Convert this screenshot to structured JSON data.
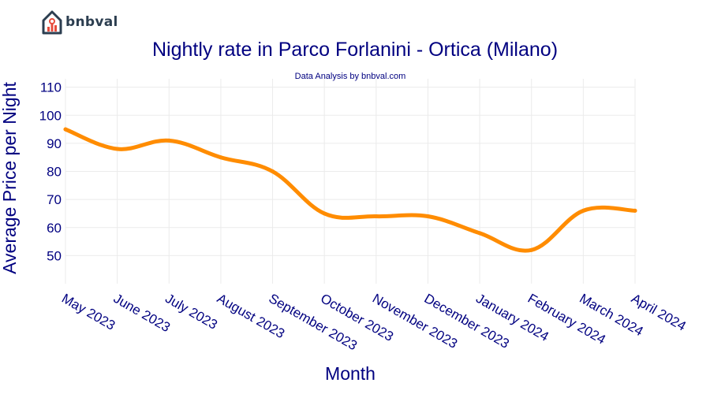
{
  "brand": {
    "name": "bnbval"
  },
  "chart_data": {
    "type": "line",
    "title": "Nightly rate in Parco Forlanini - Ortica (Milano)",
    "subtitle": "Data Analysis by bnbval.com",
    "xlabel": "Month",
    "ylabel": "Average Price per Night",
    "categories": [
      "May 2023",
      "June 2023",
      "July 2023",
      "August 2023",
      "September 2023",
      "October 2023",
      "November 2023",
      "December 2023",
      "January 2024",
      "February 2024",
      "March 2024",
      "April 2024"
    ],
    "series": [
      {
        "values": [
          95,
          88,
          91,
          85,
          80,
          65,
          64,
          64,
          58,
          52,
          66,
          66
        ],
        "color": "#ff8c00"
      }
    ],
    "ylim": [
      40,
      113
    ],
    "yticks": [
      50,
      60,
      70,
      80,
      90,
      100,
      110
    ],
    "grid": true
  }
}
